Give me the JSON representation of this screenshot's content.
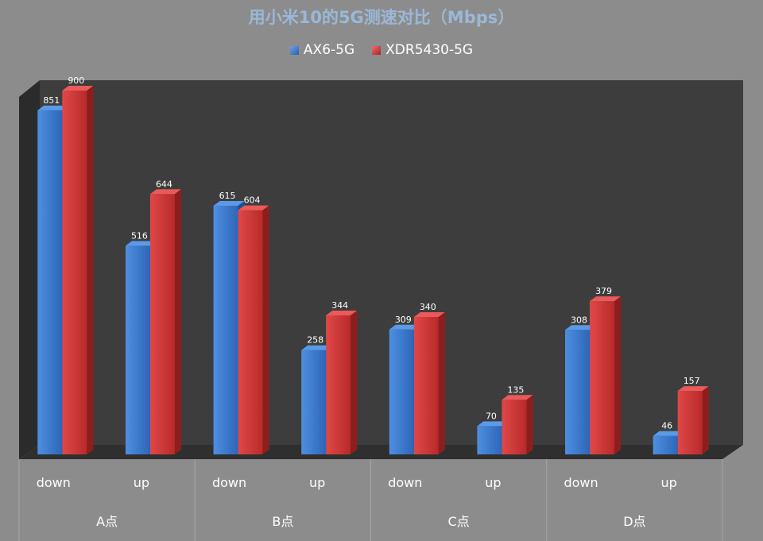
{
  "chart_data": {
    "type": "bar",
    "title": "用小米10的5G测速对比（Mbps）",
    "categories": [
      "down",
      "up",
      "down",
      "up",
      "down",
      "up",
      "down",
      "up"
    ],
    "groups": [
      "A点",
      "B点",
      "C点",
      "D点"
    ],
    "series": [
      {
        "name": "AX6-5G",
        "values": [
          851,
          516,
          615,
          258,
          309,
          70,
          308,
          46
        ],
        "color": "#3a78c9"
      },
      {
        "name": "XDR5430-5G",
        "values": [
          900,
          644,
          604,
          344,
          340,
          135,
          379,
          157
        ],
        "color": "#d23a3a"
      }
    ],
    "ylim": [
      0,
      900
    ],
    "legend_position": "top",
    "grid": false,
    "style": "3d-column"
  }
}
